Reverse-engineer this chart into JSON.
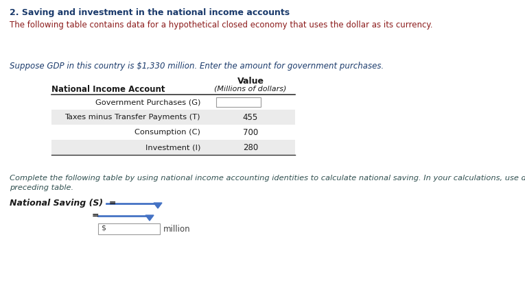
{
  "title": "2. Saving and investment in the national income accounts",
  "subtitle": "The following table contains data for a hypothetical closed economy that uses the dollar as its currency.",
  "suppose_text": "Suppose GDP in this country is $1,330 million. Enter the amount for government purchases.",
  "col_header1": "National Income Account",
  "col_header2": "Value",
  "col_header2b": "(Millions of dollars)",
  "rows": [
    [
      "Government Purchases (G)",
      ""
    ],
    [
      "Taxes minus Transfer Payments (T)",
      "455"
    ],
    [
      "Consumption (C)",
      "700"
    ],
    [
      "Investment (I)",
      "280"
    ]
  ],
  "row_shading": [
    false,
    true,
    false,
    true
  ],
  "complete_text1": "Complete the following table by using national income accounting identities to calculate national saving. In your calculations, use data from the",
  "complete_text2": "preceding table.",
  "national_saving_label": "National Saving (S)",
  "title_color": "#1a3a6b",
  "subtitle_color": "#8B1A1A",
  "suppose_color": "#1a3a6b",
  "complete_color": "#2F4F4F",
  "table_header_color": "#1a1a1a",
  "table_text_color": "#1a1a1a",
  "shading_color": "#EBEBEB",
  "line_color": "#333333",
  "dropdown_color": "#4472C4",
  "background_color": "#FFFFFF"
}
